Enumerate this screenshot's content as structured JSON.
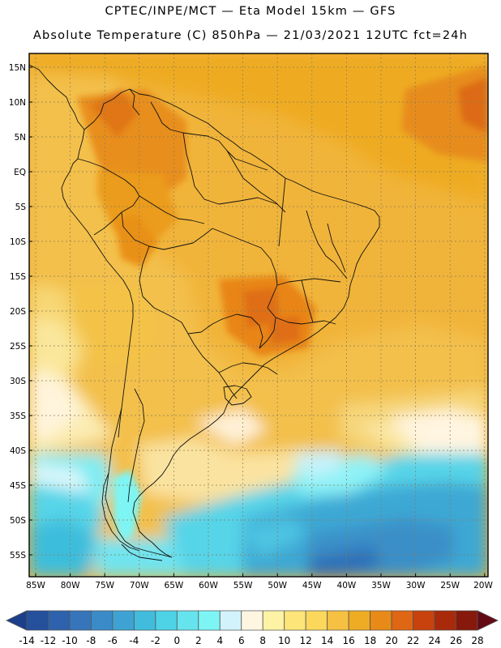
{
  "header": {
    "line1": "CPTEC/INPE/MCT —  Eta Model 15km — GFS",
    "line2": "Absolute Temperature (C) 850hPa — 21/03/2021 12UTC fct=24h"
  },
  "map": {
    "lat_ticks": [
      "15N",
      "10N",
      "5N",
      "EQ",
      "5S",
      "10S",
      "15S",
      "20S",
      "25S",
      "30S",
      "35S",
      "40S",
      "45S",
      "50S",
      "55S"
    ],
    "lon_ticks": [
      "85W",
      "80W",
      "75W",
      "70W",
      "65W",
      "60W",
      "55W",
      "50W",
      "45W",
      "40W",
      "35W",
      "30W",
      "25W",
      "20W"
    ]
  },
  "colorbar": {
    "labels": [
      "-14",
      "-12",
      "-10",
      "-8",
      "-6",
      "-4",
      "-2",
      "0",
      "2",
      "4",
      "6",
      "8",
      "10",
      "12",
      "14",
      "16",
      "18",
      "20",
      "22",
      "24",
      "26",
      "28"
    ],
    "colors": [
      "#1c3f8c",
      "#24509c",
      "#2e62ad",
      "#3775bb",
      "#3b8bc8",
      "#3ea3d2",
      "#41bcdd",
      "#4dd2e6",
      "#66e4ee",
      "#7ef5f5",
      "#d2f3fb",
      "#fff6e2",
      "#fef3a4",
      "#fde57a",
      "#fbd75c",
      "#f6c142",
      "#eeab24",
      "#e88a18",
      "#df6612",
      "#c8420e",
      "#a82a0b",
      "#86190b",
      "#640a14"
    ]
  }
}
